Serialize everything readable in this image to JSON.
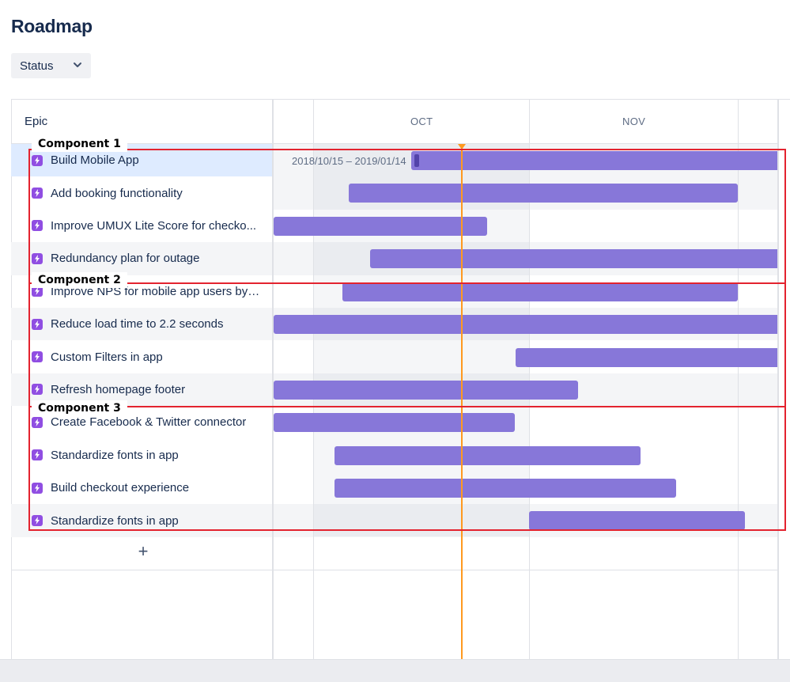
{
  "page": {
    "title": "Roadmap"
  },
  "filter": {
    "status_label": "Status"
  },
  "table": {
    "column_header": "Epic",
    "months": [
      "OCT",
      "NOV"
    ],
    "selected_date_range": "2018/10/15 – 2019/01/14",
    "epics": [
      {
        "label": "Build Mobile App"
      },
      {
        "label": "Add booking functionality"
      },
      {
        "label": "Improve UMUX Lite Score for checko..."
      },
      {
        "label": "Redundancy plan for outage"
      },
      {
        "label": "Improve NPS for mobile app users by ..."
      },
      {
        "label": "Reduce load time to 2.2 seconds"
      },
      {
        "label": "Custom Filters in app"
      },
      {
        "label": "Refresh homepage footer"
      },
      {
        "label": "Create Facebook & Twitter connector"
      },
      {
        "label": "Standardize fonts in app"
      },
      {
        "label": "Build checkout experience"
      },
      {
        "label": "Standardize fonts in app"
      }
    ],
    "add_label": "+"
  },
  "annotations": [
    {
      "label": "Component 1"
    },
    {
      "label": "Component 2"
    },
    {
      "label": "Component 3"
    }
  ],
  "colors": {
    "bar": "#8777d9",
    "epic_icon": "#904ee2",
    "today_line": "#ff991f",
    "annotation": "#e3232f",
    "selected_row": "#deebff"
  }
}
